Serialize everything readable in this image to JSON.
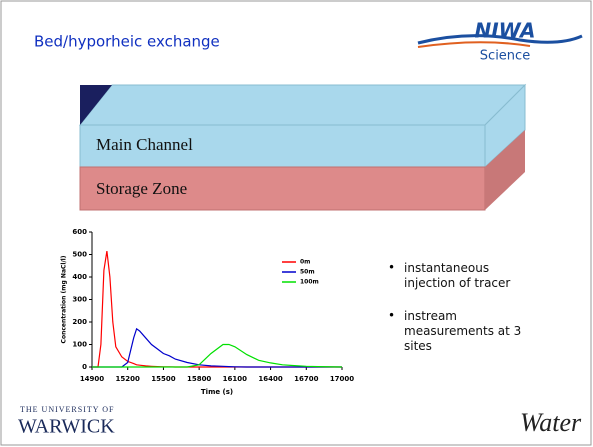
{
  "slide": {
    "title": "Bed/hyporheic exchange",
    "logo": {
      "name": "NIWA",
      "subtitle": "Science"
    },
    "diagram": {
      "top_label": "Main Channel",
      "bottom_label": "Storage Zone"
    },
    "bullets": [
      "instantaneous injection of tracer",
      "instream measurements at 3 sites"
    ],
    "footer": {
      "university_line1": "THE UNIVERSITY OF",
      "university_line2": "WARWICK",
      "tagline": "Water"
    }
  },
  "chart_data": {
    "type": "line",
    "x_label": "Time (s)",
    "y_label": "Concentration (mg NaCl/l)",
    "x": [
      14900,
      14950,
      14975,
      15000,
      15025,
      15050,
      15075,
      15100,
      15150,
      15200,
      15250,
      15275,
      15300,
      15350,
      15400,
      15450,
      15500,
      15550,
      15600,
      15700,
      15800,
      15900,
      16000,
      16050,
      16100,
      16200,
      16300,
      16400,
      16500,
      16600,
      16700,
      16800,
      17000
    ],
    "series": [
      {
        "name": "0m",
        "color": "#ff0000",
        "values": [
          0,
          0,
          100,
          430,
          515,
          400,
          200,
          90,
          45,
          25,
          15,
          10,
          8,
          5,
          3,
          2,
          1,
          1,
          0,
          0,
          0,
          0,
          0,
          0,
          0,
          0,
          0,
          0,
          0,
          0,
          0,
          0,
          0
        ]
      },
      {
        "name": "50m",
        "color": "#0000cc",
        "values": [
          0,
          0,
          0,
          0,
          0,
          0,
          0,
          0,
          0,
          20,
          130,
          170,
          160,
          130,
          100,
          80,
          60,
          50,
          35,
          20,
          10,
          5,
          3,
          2,
          1,
          0,
          0,
          0,
          0,
          0,
          0,
          0,
          0
        ]
      },
      {
        "name": "100m",
        "color": "#00e000",
        "values": [
          0,
          0,
          0,
          0,
          0,
          0,
          0,
          0,
          0,
          0,
          0,
          0,
          0,
          0,
          0,
          0,
          0,
          0,
          0,
          0,
          10,
          60,
          100,
          100,
          90,
          55,
          30,
          18,
          10,
          6,
          3,
          2,
          0
        ]
      }
    ],
    "xlim": [
      14900,
      17000
    ],
    "ylim": [
      0,
      600
    ],
    "xticks": [
      14900,
      15200,
      15500,
      15800,
      16100,
      16400,
      16700,
      17000
    ],
    "yticks": [
      0,
      100,
      200,
      300,
      400,
      500,
      600
    ],
    "legend": "right"
  }
}
